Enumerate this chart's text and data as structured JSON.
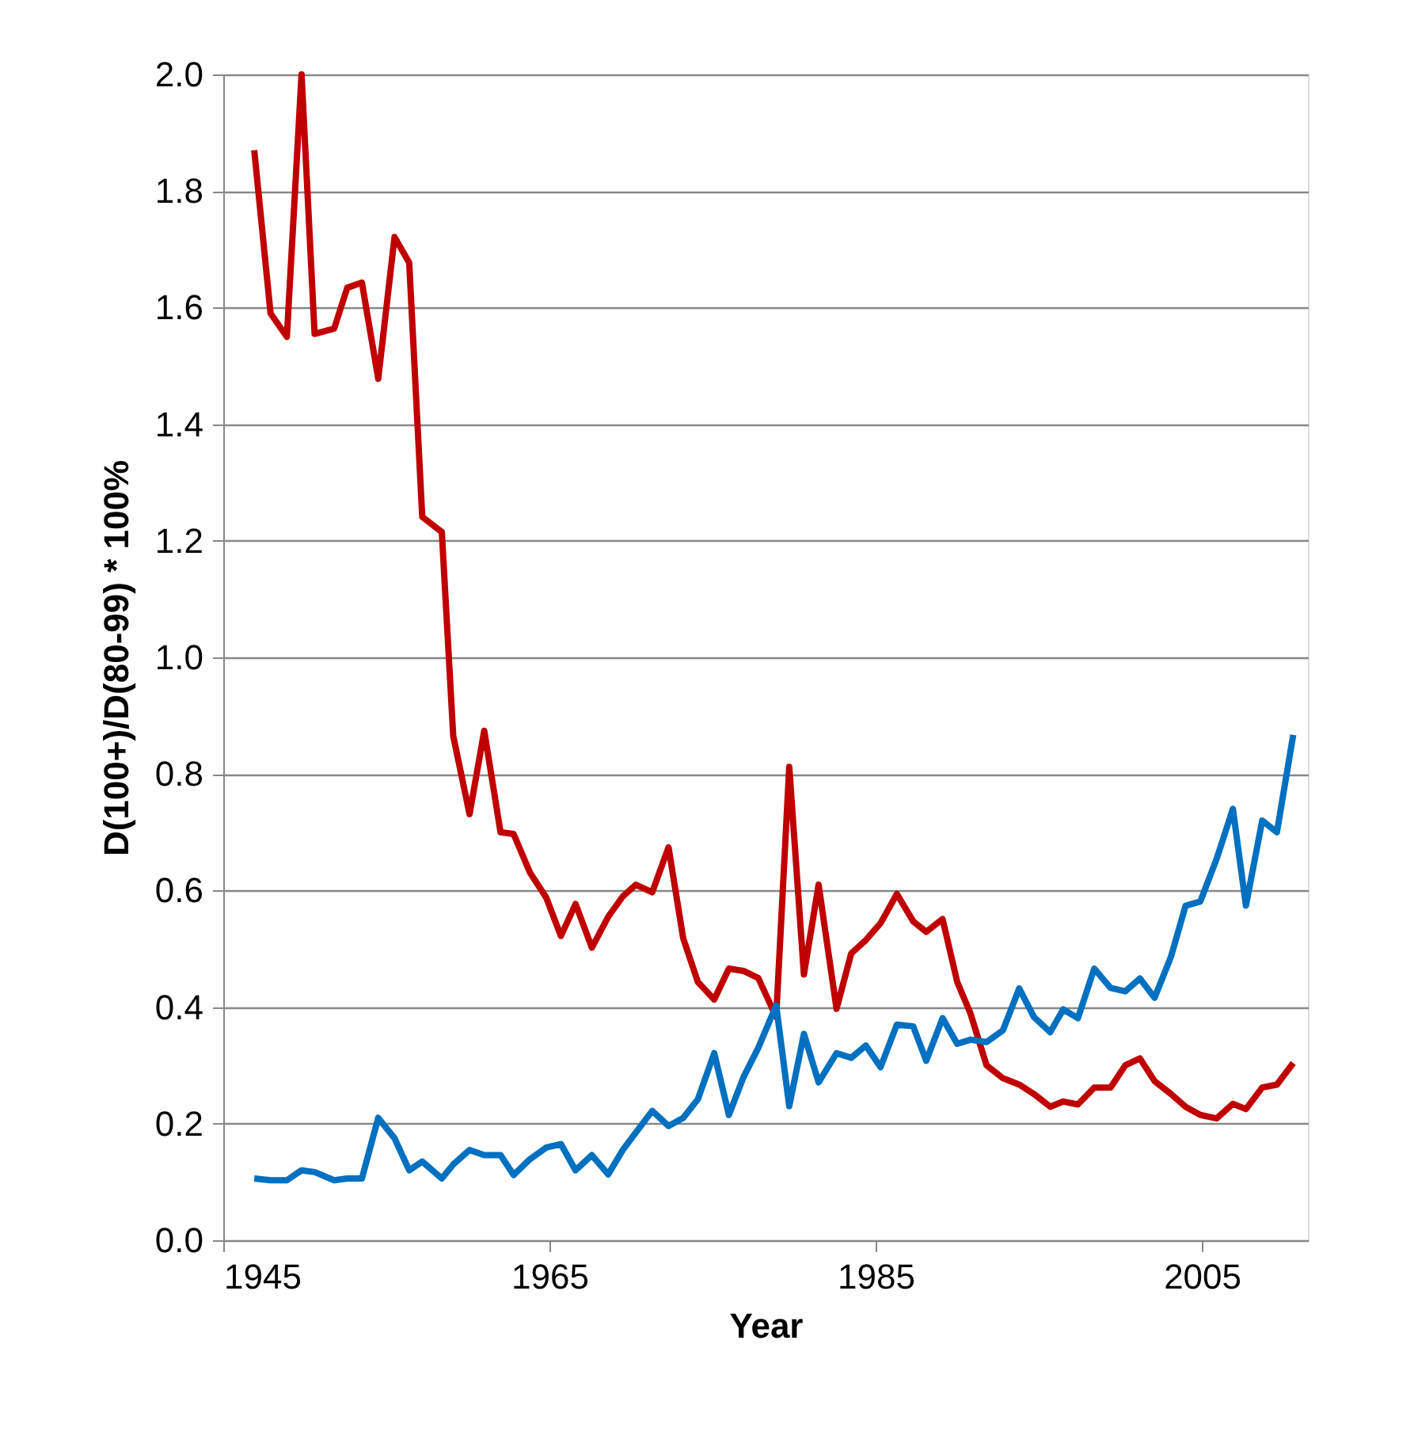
{
  "chart_data": {
    "type": "line",
    "xlabel": "Year",
    "ylabel": "D(100+)/D(80-99) * 100%",
    "x": [
      1946.9,
      1947.9,
      1948.9,
      1949.8,
      1950.6,
      1951.8,
      1952.6,
      1953.5,
      1954.5,
      1955.5,
      1956.4,
      1957.2,
      1958.4,
      1959.1,
      1960.1,
      1961.0,
      1962.0,
      1962.8,
      1963.8,
      1964.8,
      1965.7,
      1966.6,
      1967.6,
      1968.6,
      1969.5,
      1970.3,
      1971.3,
      1972.3,
      1973.2,
      1974.1,
      1975.1,
      1976.0,
      1976.9,
      1977.8,
      1978.9,
      1979.7,
      1980.6,
      1981.5,
      1982.6,
      1983.5,
      1984.4,
      1985.3,
      1986.3,
      1987.3,
      1988.1,
      1989.1,
      1990.0,
      1990.8,
      1991.8,
      1992.8,
      1993.8,
      1994.7,
      1995.7,
      1996.5,
      1997.4,
      1998.4,
      1999.4,
      2000.3,
      2001.2,
      2002.1,
      2003.1,
      2004.0,
      2004.9,
      2005.9,
      2006.9,
      2007.7,
      2008.7,
      2009.6,
      2010.6
    ],
    "series": [
      {
        "color": "#c00000",
        "values": [
          1.87,
          1.59,
          1.55,
          2.0,
          1.555,
          1.564,
          1.634,
          1.643,
          1.478,
          1.721,
          1.677,
          1.241,
          1.215,
          0.865,
          0.731,
          0.874,
          0.7,
          0.697,
          0.631,
          0.588,
          0.522,
          0.577,
          0.502,
          0.555,
          0.59,
          0.61,
          0.597,
          0.674,
          0.518,
          0.443,
          0.413,
          0.466,
          0.462,
          0.45,
          0.383,
          0.812,
          0.456,
          0.61,
          0.397,
          0.492,
          0.515,
          0.544,
          0.594,
          0.547,
          0.529,
          0.551,
          0.443,
          0.39,
          0.3,
          0.278,
          0.267,
          0.251,
          0.229,
          0.238,
          0.233,
          0.262,
          0.262,
          0.3,
          0.312,
          0.273,
          0.251,
          0.229,
          0.215,
          0.209,
          0.234,
          0.225,
          0.262,
          0.267,
          0.304
        ]
      },
      {
        "color": "#0070c0",
        "values": [
          0.106,
          0.103,
          0.103,
          0.12,
          0.117,
          0.103,
          0.106,
          0.106,
          0.21,
          0.175,
          0.12,
          0.135,
          0.106,
          0.13,
          0.155,
          0.146,
          0.146,
          0.112,
          0.139,
          0.159,
          0.165,
          0.12,
          0.146,
          0.113,
          0.155,
          0.185,
          0.222,
          0.196,
          0.21,
          0.242,
          0.321,
          0.215,
          0.28,
          0.33,
          0.403,
          0.23,
          0.354,
          0.271,
          0.321,
          0.313,
          0.334,
          0.297,
          0.37,
          0.367,
          0.308,
          0.381,
          0.337,
          0.344,
          0.34,
          0.36,
          0.432,
          0.383,
          0.357,
          0.396,
          0.381,
          0.466,
          0.433,
          0.427,
          0.449,
          0.416,
          0.486,
          0.574,
          0.581,
          0.654,
          0.74,
          0.574,
          0.72,
          0.7,
          0.867
        ]
      }
    ],
    "xlim": [
      1945,
      2011.5
    ],
    "xticks": [
      1945,
      1965,
      1985,
      2005
    ],
    "ylim": [
      0,
      2.0
    ],
    "yticks": [
      {
        "value": 0,
        "label": "0.0"
      },
      {
        "value": 0.2,
        "label": "0.2"
      },
      {
        "value": 0.4,
        "label": "0.4"
      },
      {
        "value": 0.6,
        "label": "0.6"
      },
      {
        "value": 0.8,
        "label": "0.8"
      },
      {
        "value": 1.0,
        "label": "1.0"
      },
      {
        "value": 1.2,
        "label": "1.2"
      },
      {
        "value": 1.4,
        "label": "1.4"
      },
      {
        "value": 1.6,
        "label": "1.6"
      },
      {
        "value": 1.8,
        "label": "1.8"
      },
      {
        "value": 2.0,
        "label": "2.0"
      }
    ],
    "grid": "y",
    "marker": "none",
    "line_style": "solid"
  }
}
